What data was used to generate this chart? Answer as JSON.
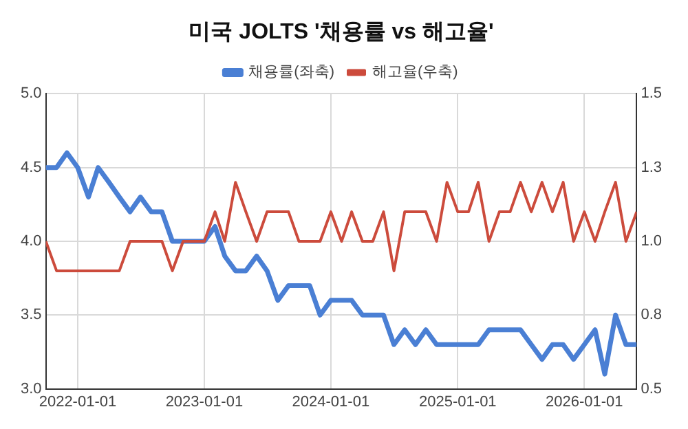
{
  "chart_data": {
    "type": "line",
    "title": "미국 JOLTS '채용률 vs 해고율'",
    "x": [
      "2021-10",
      "2021-11",
      "2021-12",
      "2022-01",
      "2022-02",
      "2022-03",
      "2022-04",
      "2022-05",
      "2022-06",
      "2022-07",
      "2022-08",
      "2022-09",
      "2022-10",
      "2022-11",
      "2022-12",
      "2023-01",
      "2023-02",
      "2023-03",
      "2023-04",
      "2023-05",
      "2023-06",
      "2023-07",
      "2023-08",
      "2023-09",
      "2023-10",
      "2023-11",
      "2023-12",
      "2024-01",
      "2024-02",
      "2024-03",
      "2024-04",
      "2024-05",
      "2024-06",
      "2024-07",
      "2024-08",
      "2024-09",
      "2024-10",
      "2024-11",
      "2024-12",
      "2025-01",
      "2025-02",
      "2025-03",
      "2025-04",
      "2025-05",
      "2025-06",
      "2025-07",
      "2025-08",
      "2025-09",
      "2025-10",
      "2025-11",
      "2025-12",
      "2026-01",
      "2026-02",
      "2026-03",
      "2026-04",
      "2026-05",
      "2026-06"
    ],
    "series": [
      {
        "name": "채용률(좌축)",
        "color": "#4a7fd4",
        "values": [
          4.5,
          4.5,
          4.6,
          4.5,
          4.3,
          4.5,
          4.4,
          4.3,
          4.2,
          4.3,
          4.2,
          4.2,
          4.0,
          4.0,
          4.0,
          4.0,
          4.1,
          3.9,
          3.8,
          3.8,
          3.9,
          3.8,
          3.6,
          3.7,
          3.7,
          3.7,
          3.5,
          3.6,
          3.6,
          3.6,
          3.5,
          3.5,
          3.5,
          3.3,
          3.4,
          3.3,
          3.4,
          3.3,
          3.3,
          3.3,
          3.3,
          3.3,
          3.4,
          3.4,
          3.4,
          3.4,
          3.3,
          3.2,
          3.3,
          3.3,
          3.2,
          3.3,
          3.4,
          3.1,
          3.5,
          3.3,
          3.3
        ]
      },
      {
        "name": "해고율(우축)",
        "color": "#cc4b3c",
        "axis": "y2",
        "values": [
          1.0,
          0.9,
          0.9,
          0.9,
          0.9,
          0.9,
          0.9,
          0.9,
          1.0,
          1.0,
          1.0,
          1.0,
          0.9,
          1.0,
          1.0,
          1.0,
          1.1,
          1.0,
          1.2,
          1.1,
          1.0,
          1.1,
          1.1,
          1.1,
          1.0,
          1.0,
          1.0,
          1.1,
          1.0,
          1.1,
          1.0,
          1.0,
          1.1,
          0.9,
          1.1,
          1.1,
          1.1,
          1.0,
          1.2,
          1.1,
          1.1,
          1.2,
          1.0,
          1.1,
          1.1,
          1.2,
          1.1,
          1.2,
          1.1,
          1.2,
          1.0,
          1.1,
          1.0,
          1.1,
          1.2,
          1.0,
          1.1
        ]
      }
    ],
    "xlim": [
      "2021-10",
      "2026-06"
    ],
    "xticks": [
      "2022-01-01",
      "2023-01-01",
      "2024-01-01",
      "2025-01-01",
      "2026-01-01"
    ],
    "ylim": [
      3.0,
      5.0
    ],
    "yticks": [
      {
        "value": 3.0,
        "label": "3.0"
      },
      {
        "value": 3.5,
        "label": "3.5"
      },
      {
        "value": 4.0,
        "label": "4.0"
      },
      {
        "value": 4.5,
        "label": "4.5"
      },
      {
        "value": 5.0,
        "label": "5.0"
      }
    ],
    "y2lim": [
      0.5,
      1.5
    ],
    "y2ticks": [
      0.5,
      {
        "value": 0.75,
        "label": "0.8"
      },
      {
        "value": 1.0,
        "label": "1.0"
      },
      {
        "value": 1.25,
        "label": "1.3"
      },
      1.5
    ],
    "grid": true,
    "legend": "top",
    "marker": "none",
    "line_style": "solid"
  }
}
